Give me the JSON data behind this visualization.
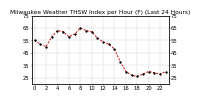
{
  "title": "Milwaukee Weather THSW Index per Hour (F) (Last 24 Hours)",
  "hours": [
    0,
    1,
    2,
    3,
    4,
    5,
    6,
    7,
    8,
    9,
    10,
    11,
    12,
    13,
    14,
    15,
    16,
    17,
    18,
    19,
    20,
    21,
    22,
    23
  ],
  "values": [
    55,
    52,
    50,
    58,
    63,
    62,
    58,
    60,
    65,
    63,
    62,
    57,
    54,
    52,
    48,
    38,
    30,
    27,
    26,
    28,
    30,
    29,
    28,
    30
  ],
  "ylim": [
    20,
    75
  ],
  "ytick_positions": [
    25,
    35,
    45,
    55,
    65,
    75
  ],
  "ytick_labels": [
    "25",
    "35",
    "45",
    "55",
    "65",
    "75"
  ],
  "xtick_positions": [
    0,
    2,
    4,
    6,
    8,
    10,
    12,
    14,
    16,
    18,
    20,
    22
  ],
  "xtick_labels": [
    "0",
    "2",
    "4",
    "6",
    "8",
    "10",
    "12",
    "14",
    "16",
    "18",
    "20",
    "22"
  ],
  "line_color": "#cc0000",
  "marker_color": "#000000",
  "bg_color": "#ffffff",
  "grid_color": "#888888",
  "title_color": "#000000",
  "title_fontsize": 4.2,
  "tick_fontsize": 3.8,
  "right_yaxis": true
}
